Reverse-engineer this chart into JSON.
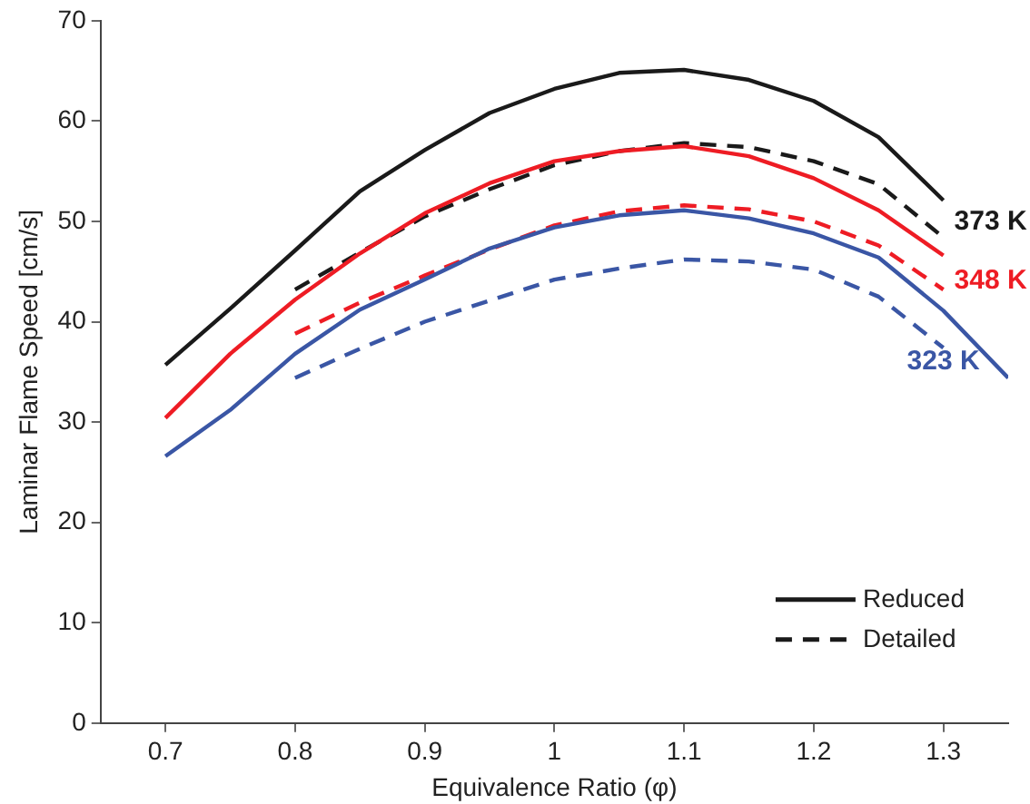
{
  "chart_data": {
    "type": "line",
    "xlabel": "Equivalence Ratio (φ)",
    "ylabel": "Laminar Flame Speed [cm/s]",
    "xlim": [
      0.65,
      1.35
    ],
    "xticks": [
      0.7,
      0.8,
      0.9,
      1,
      1.1,
      1.2,
      1.3
    ],
    "ylim": [
      0,
      70
    ],
    "yticks": [
      0,
      10,
      20,
      30,
      40,
      50,
      60,
      70
    ],
    "grid": false,
    "legend": "bottom right",
    "marker": "none",
    "series": [
      {
        "name": "Reduced",
        "color": "#1a1a1a",
        "line_style": "solid",
        "x": [
          0.7,
          0.75,
          0.8,
          0.85,
          0.9,
          0.95,
          1.0,
          1.05,
          1.1,
          1.15,
          1.2,
          1.25,
          1.3
        ],
        "values": [
          35.7,
          41.3,
          47.1,
          53.0,
          57.1,
          60.8,
          63.2,
          64.8,
          65.1,
          64.1,
          62.0,
          58.4,
          52.1
        ]
      },
      {
        "color": "#ee1c24",
        "line_style": "solid",
        "x": [
          0.7,
          0.75,
          0.8,
          0.85,
          0.9,
          0.95,
          1.0,
          1.05,
          1.1,
          1.15,
          1.2,
          1.25,
          1.3
        ],
        "values": [
          30.4,
          36.8,
          42.2,
          46.8,
          50.8,
          53.8,
          56.0,
          57.0,
          57.5,
          56.5,
          54.3,
          51.1,
          46.6
        ]
      },
      {
        "color": "#3a56a5",
        "line_style": "solid",
        "x": [
          0.7,
          0.75,
          0.8,
          0.85,
          0.9,
          0.95,
          1.0,
          1.05,
          1.1,
          1.15,
          1.2,
          1.25,
          1.3,
          1.35
        ],
        "values": [
          26.6,
          31.2,
          36.8,
          41.2,
          44.2,
          47.3,
          49.4,
          50.6,
          51.1,
          50.3,
          48.8,
          46.4,
          41.1,
          34.4
        ]
      },
      {
        "name": "Detailed",
        "color": "#1a1a1a",
        "line_style": "dashed",
        "x": [
          0.8,
          0.85,
          0.9,
          0.95,
          1.0,
          1.05,
          1.1,
          1.15,
          1.2,
          1.25,
          1.3
        ],
        "values": [
          43.2,
          46.9,
          50.5,
          53.2,
          55.6,
          57.0,
          57.8,
          57.4,
          56.0,
          53.7,
          48.4
        ]
      },
      {
        "color": "#ee1c24",
        "line_style": "dashed",
        "x": [
          0.8,
          0.85,
          0.9,
          0.95,
          1.0,
          1.05,
          1.1,
          1.15,
          1.2,
          1.25,
          1.3
        ],
        "values": [
          38.8,
          41.9,
          44.6,
          47.2,
          49.6,
          51.0,
          51.6,
          51.2,
          50.0,
          47.6,
          43.2
        ]
      },
      {
        "color": "#3a56a5",
        "line_style": "dashed",
        "x": [
          0.8,
          0.85,
          0.9,
          0.95,
          1.0,
          1.05,
          1.1,
          1.15,
          1.2,
          1.25,
          1.3
        ],
        "values": [
          34.4,
          37.3,
          40.0,
          42.1,
          44.2,
          45.3,
          46.2,
          46.0,
          45.2,
          42.5,
          37.4
        ]
      }
    ],
    "annotations": [
      "373 K",
      "348 K",
      "323 K"
    ]
  }
}
